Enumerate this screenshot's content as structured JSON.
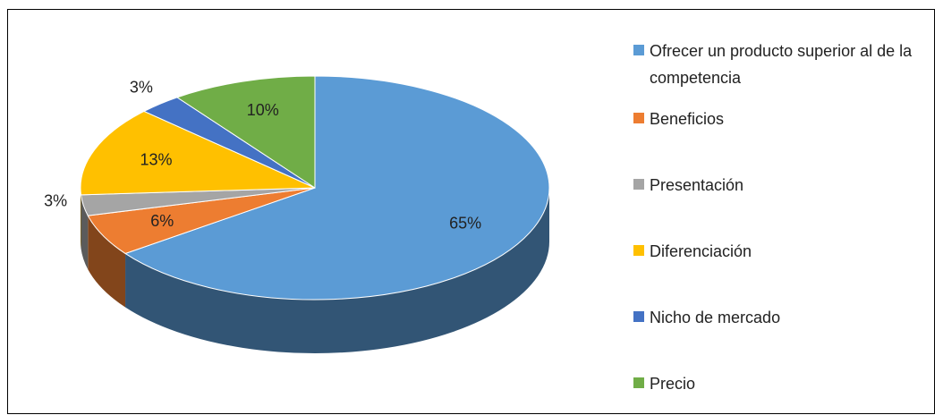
{
  "chart_data": {
    "type": "pie",
    "categories": [
      "Ofrecer un producto superior al de la competencia",
      "Beneficios",
      "Presentación",
      "Diferenciación",
      "Nicho de mercado",
      "Precio"
    ],
    "values": [
      65,
      6,
      3,
      13,
      3,
      10
    ],
    "value_labels": [
      "65%",
      "6%",
      "3%",
      "13%",
      "3%",
      "10%"
    ],
    "colors": [
      "#5b9bd5",
      "#ed7d31",
      "#a5a5a5",
      "#ffc000",
      "#4472c4",
      "#70ad47"
    ],
    "legend": "right"
  }
}
